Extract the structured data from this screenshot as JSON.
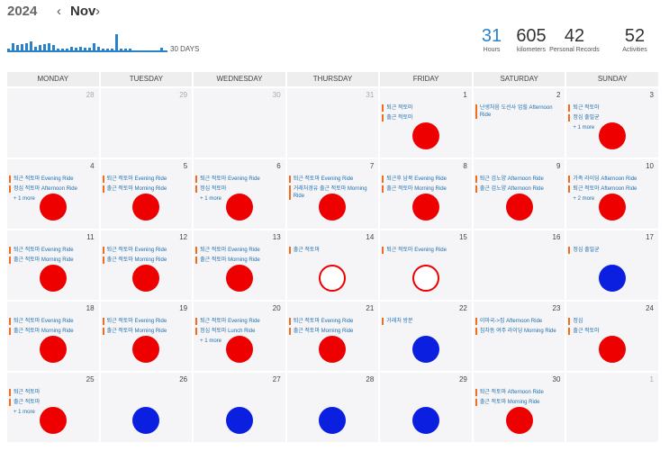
{
  "header": {
    "year": "2024",
    "month": "Nov",
    "prev_icon": "chevron-left-icon",
    "next_icon": "chevron-right-icon"
  },
  "sparkline": {
    "label": "30 DAYS",
    "color": "#2b82c9",
    "values": [
      4,
      10,
      8,
      9,
      10,
      12,
      6,
      8,
      9,
      10,
      8,
      4,
      4,
      4,
      6,
      5,
      6,
      5,
      5,
      10,
      6,
      4,
      4,
      4,
      20,
      4,
      4,
      4,
      2,
      2,
      2,
      2,
      2,
      2,
      5
    ]
  },
  "stats": [
    {
      "value": "31",
      "label": "Hours",
      "accent": true
    },
    {
      "value": "605",
      "label": "kilometers",
      "accent": false
    },
    {
      "value": "42",
      "label": "Personal Records",
      "accent": false
    },
    {
      "value": "52",
      "label": "Activities",
      "accent": false
    }
  ],
  "weekdays": [
    "MONDAY",
    "TUESDAY",
    "WEDNESDAY",
    "THURSDAY",
    "FRIDAY",
    "SATURDAY",
    "SUNDAY"
  ],
  "colors": {
    "red": "#ee0000",
    "blue": "#0a1fe0",
    "event_bar": "#ef6d1f",
    "event_text": "#1f6fae"
  },
  "days": [
    {
      "num": "28",
      "out": true,
      "events": [],
      "more": "",
      "dot": ""
    },
    {
      "num": "29",
      "out": true,
      "events": [],
      "more": "",
      "dot": ""
    },
    {
      "num": "30",
      "out": true,
      "events": [],
      "more": "",
      "dot": ""
    },
    {
      "num": "31",
      "out": true,
      "events": [],
      "more": "",
      "dot": ""
    },
    {
      "num": "1",
      "events": [
        "퇴근 적토마",
        "출근 적토마"
      ],
      "more": "",
      "dot": "red"
    },
    {
      "num": "2",
      "events": [
        "난생처음 도선사 업힐 Afternoon Ride"
      ],
      "more": "",
      "dot": ""
    },
    {
      "num": "3",
      "events": [
        "퇴근 적토마",
        "정심 출밀균"
      ],
      "more": "+ 1 more",
      "dot": "red"
    },
    {
      "num": "4",
      "events": [
        "퇴근 적토마 Evening Ride",
        "정심 적토마 Afternoon Ride"
      ],
      "more": "+ 1 more",
      "dot": "red"
    },
    {
      "num": "5",
      "events": [
        "퇴근 적토마 Evening Ride",
        "출근 적토마 Morning Ride"
      ],
      "more": "",
      "dot": "red"
    },
    {
      "num": "6",
      "events": [
        "퇴근 적토마 Evening Ride",
        "정심 적토마"
      ],
      "more": "+ 1 more",
      "dot": "red"
    },
    {
      "num": "7",
      "events": [
        "퇴근 적토마 Evening Ride",
        "거래처경유 출근 적토마 Morning Ride"
      ],
      "more": "",
      "dot": "red"
    },
    {
      "num": "8",
      "events": [
        "퇴근후 남북 Evening Ride",
        "출근 적토마 Morning Ride"
      ],
      "more": "",
      "dot": "red"
    },
    {
      "num": "9",
      "events": [
        "퇴근 검노양 Afternoon Ride",
        "출근 검노양 Afternoon Ride"
      ],
      "more": "",
      "dot": "red"
    },
    {
      "num": "10",
      "events": [
        "가족 라이딩 Afternoon Ride",
        "퇴근 적토마 Afternoon Ride"
      ],
      "more": "+ 2 more",
      "dot": "red"
    },
    {
      "num": "11",
      "events": [
        "퇴근 적토마 Evening Ride",
        "출근 적토마 Morning Ride"
      ],
      "more": "",
      "dot": "red"
    },
    {
      "num": "12",
      "events": [
        "퇴근 적토마 Evening Ride",
        "출근 적토마 Morning Ride"
      ],
      "more": "",
      "dot": "red"
    },
    {
      "num": "13",
      "events": [
        "퇴근 적토마 Evening Ride",
        "출근 적토마 Morning Ride"
      ],
      "more": "",
      "dot": "red"
    },
    {
      "num": "14",
      "events": [
        "출근 적토마"
      ],
      "more": "",
      "dot": "ring"
    },
    {
      "num": "15",
      "events": [
        "퇴근 적토마 Evening Ride"
      ],
      "more": "",
      "dot": "ring"
    },
    {
      "num": "16",
      "events": [],
      "more": "",
      "dot": ""
    },
    {
      "num": "17",
      "events": [
        "정심 출밀균"
      ],
      "more": "",
      "dot": "blue"
    },
    {
      "num": "18",
      "events": [
        "퇴근 적토마 Evening Ride",
        "출근 적토마 Morning Ride"
      ],
      "more": "",
      "dot": "red"
    },
    {
      "num": "19",
      "events": [
        "퇴근 적토마 Evening Ride",
        "출근 적토마 Morning Ride"
      ],
      "more": "",
      "dot": "red"
    },
    {
      "num": "20",
      "events": [
        "퇴근 적토마 Evening Ride",
        "정심 적토마 Lunch Ride"
      ],
      "more": "+ 1 more",
      "dot": "red"
    },
    {
      "num": "21",
      "events": [
        "퇴근 적토마 Evening Ride",
        "출근 적토마 Morning Ride"
      ],
      "more": "",
      "dot": "red"
    },
    {
      "num": "22",
      "events": [
        "거래처 방문"
      ],
      "more": "",
      "dot": "blue"
    },
    {
      "num": "23",
      "events": [
        "이마국->집 Afternoon Ride",
        "침차동 여주 라이딩 Morning Ride"
      ],
      "more": "",
      "dot": ""
    },
    {
      "num": "24",
      "events": [
        "정심",
        "출근 적토마"
      ],
      "more": "",
      "dot": "red"
    },
    {
      "num": "25",
      "events": [
        "퇴근 적토마",
        "출근 적토마"
      ],
      "more": "+ 1 more",
      "dot": "red"
    },
    {
      "num": "26",
      "events": [],
      "more": "",
      "dot": "blue"
    },
    {
      "num": "27",
      "events": [],
      "more": "",
      "dot": "blue"
    },
    {
      "num": "28",
      "events": [],
      "more": "",
      "dot": "blue"
    },
    {
      "num": "29",
      "events": [],
      "more": "",
      "dot": "blue"
    },
    {
      "num": "30",
      "events": [
        "퇴근 적토마 Afternoon Ride",
        "출근 적토마 Morning Ride"
      ],
      "more": "",
      "dot": "red"
    },
    {
      "num": "1",
      "out": true,
      "events": [],
      "more": "",
      "dot": ""
    }
  ]
}
